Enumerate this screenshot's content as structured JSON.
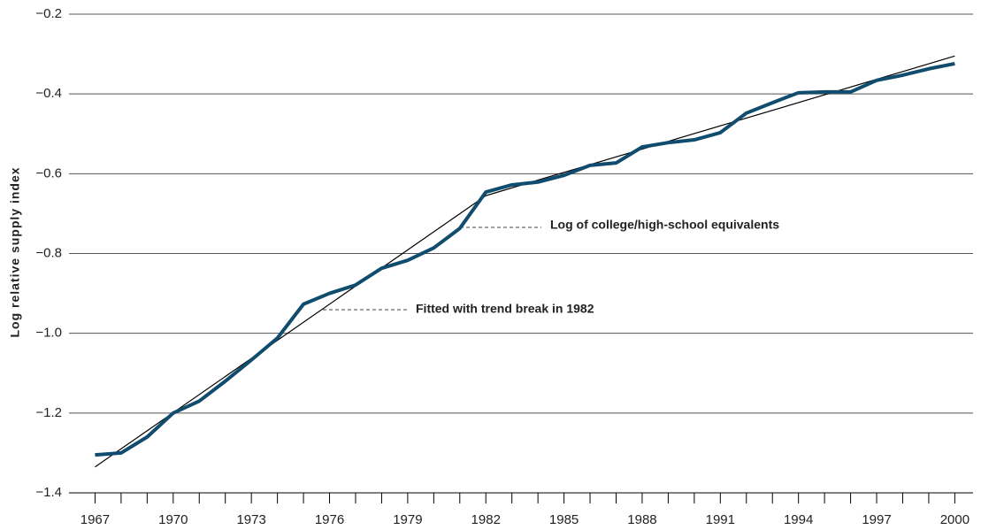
{
  "chart_data": {
    "type": "line",
    "y_label": "Log relative supply index",
    "series": [
      {
        "name": "Log of college/high-school equivalents",
        "color": "#0f4c6e",
        "x": [
          1967,
          1968,
          1969,
          1970,
          1971,
          1972,
          1973,
          1974,
          1975,
          1976,
          1977,
          1978,
          1979,
          1980,
          1981,
          1982,
          1983,
          1984,
          1985,
          1986,
          1987,
          1988,
          1989,
          1990,
          1991,
          1992,
          1993,
          1994,
          1995,
          1996,
          1997,
          1998,
          1999,
          2000
        ],
        "values": [
          -1.305,
          -1.3,
          -1.26,
          -1.2,
          -1.17,
          -1.12,
          -1.067,
          -1.012,
          -0.927,
          -0.9,
          -0.879,
          -0.837,
          -0.817,
          -0.786,
          -0.737,
          -0.646,
          -0.628,
          -0.621,
          -0.604,
          -0.579,
          -0.573,
          -0.533,
          -0.522,
          -0.515,
          -0.497,
          -0.448,
          -0.422,
          -0.397,
          -0.395,
          -0.395,
          -0.366,
          -0.353,
          -0.337,
          -0.324
        ]
      },
      {
        "name": "Fitted with trend break in 1982",
        "color": "#000000",
        "x": [
          1967,
          1982,
          2000
        ],
        "values": [
          -1.335,
          -0.655,
          -0.305
        ]
      }
    ],
    "xlim": [
      1966,
      2000.7
    ],
    "xticks": [
      1967,
      1970,
      1973,
      1976,
      1979,
      1982,
      1985,
      1988,
      1991,
      1994,
      1997,
      2000
    ],
    "xminorticks": [
      1967,
      1968,
      1969,
      1970,
      1971,
      1972,
      1973,
      1974,
      1975,
      1976,
      1977,
      1978,
      1979,
      1980,
      1981,
      1982,
      1983,
      1984,
      1985,
      1986,
      1987,
      1988,
      1989,
      1990,
      1991,
      1992,
      1993,
      1994,
      1995,
      1996,
      1997,
      1998,
      1999,
      2000
    ],
    "ylim": [
      -1.4,
      -0.2
    ],
    "yticks": [
      {
        "value": -1.4,
        "label": "−1.4"
      },
      {
        "value": -1.2,
        "label": "−1.2"
      },
      {
        "value": -1.0,
        "label": "−1.0"
      },
      {
        "value": -0.8,
        "label": "−0.8"
      },
      {
        "value": -0.6,
        "label": "−0.6"
      },
      {
        "value": -0.4,
        "label": "−0.4"
      },
      {
        "value": -0.2,
        "label": "−0.2"
      }
    ],
    "grid": true
  }
}
